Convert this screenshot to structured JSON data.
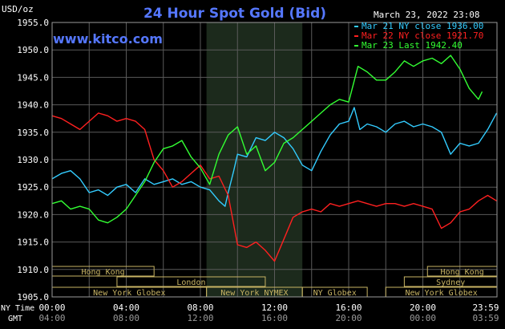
{
  "chart_data": {
    "type": "line",
    "title": "24 Hour Spot Gold (Bid)",
    "ylabel": "USD/oz",
    "watermark": "www.kitco.com",
    "timestamp": "March 23, 2022 23:08",
    "ylim": [
      1905.0,
      1955.0
    ],
    "yticks": [
      "1955.0",
      "1950.0",
      "1945.0",
      "1940.0",
      "1935.0",
      "1930.0",
      "1925.0",
      "1920.0",
      "1915.0",
      "1910.0",
      "1905.0"
    ],
    "xlim": [
      0,
      24
    ],
    "xtick_hours": [
      0,
      4,
      8,
      12,
      16,
      20,
      23.983
    ],
    "x_row_labels": {
      "ny": "NY Time",
      "gmt": "GMT"
    },
    "xticks_ny": [
      "00:00",
      "04:00",
      "08:00",
      "12:00",
      "16:00",
      "20:00",
      "23:59"
    ],
    "xticks_gmt": [
      "04:00",
      "08:00",
      "12:00",
      "16:00",
      "20:00",
      "00:00",
      "03:59"
    ],
    "nymex_shade": [
      8.33,
      13.5
    ],
    "sessions": [
      {
        "label": "Hong Kong",
        "start": 0.0,
        "end": 5.5,
        "row": 0
      },
      {
        "label": "Hong Kong",
        "start": 20.25,
        "end": 24.0,
        "row": 0
      },
      {
        "label": "London",
        "start": 3.5,
        "end": 11.5,
        "row": 1
      },
      {
        "label": "Sydney",
        "start": 19.0,
        "end": 24.0,
        "row": 1
      },
      {
        "label": "New York Globex",
        "start": 0.0,
        "end": 8.33,
        "row": 2
      },
      {
        "label": "New York NYMEX",
        "start": 8.33,
        "end": 13.5,
        "row": 2
      },
      {
        "label": "NY Globex",
        "start": 13.5,
        "end": 17.0,
        "row": 2
      },
      {
        "label": "New York Globex",
        "start": 18.0,
        "end": 24.0,
        "row": 2
      }
    ],
    "series": [
      {
        "name": "Mar 21 NY close 1936.00",
        "color": "#33ccff",
        "x": [
          0,
          0.5,
          1.0,
          1.5,
          2.0,
          2.5,
          3.0,
          3.5,
          4.0,
          4.5,
          5.0,
          5.5,
          6.0,
          6.5,
          7.0,
          7.5,
          8.0,
          8.5,
          9.0,
          9.33,
          9.5,
          9.8,
          10.0,
          10.5,
          11.0,
          11.5,
          12.0,
          12.5,
          13.0,
          13.5,
          14.0,
          14.5,
          15.0,
          15.5,
          16.0,
          16.3,
          16.6,
          17.0,
          17.5,
          18.0,
          18.5,
          19.0,
          19.5,
          20.0,
          20.5,
          21.0,
          21.5,
          22.0,
          22.5,
          23.0,
          23.5,
          23.98
        ],
        "values": [
          1926.5,
          1927.5,
          1928.0,
          1926.5,
          1924.0,
          1924.5,
          1923.5,
          1925.0,
          1925.5,
          1924.0,
          1926.5,
          1925.5,
          1926.0,
          1926.5,
          1925.5,
          1926.0,
          1925.0,
          1924.5,
          1922.5,
          1921.5,
          1924.0,
          1928.0,
          1931.0,
          1930.5,
          1934.0,
          1933.5,
          1935.0,
          1934.0,
          1932.0,
          1929.0,
          1928.0,
          1931.5,
          1934.5,
          1936.5,
          1937.0,
          1939.5,
          1935.5,
          1936.5,
          1936.0,
          1935.0,
          1936.5,
          1937.0,
          1936.0,
          1936.5,
          1936.0,
          1935.0,
          1931.0,
          1933.0,
          1932.5,
          1933.0,
          1935.5,
          1938.5
        ]
      },
      {
        "name": "Mar 22 NY close 1921.70",
        "color": "#ff2020",
        "x": [
          0,
          0.5,
          1.0,
          1.5,
          2.0,
          2.5,
          3.0,
          3.5,
          4.0,
          4.5,
          5.0,
          5.5,
          6.0,
          6.5,
          7.0,
          7.5,
          8.0,
          8.5,
          9.0,
          9.5,
          10.0,
          10.5,
          11.0,
          11.5,
          12.0,
          12.5,
          13.0,
          13.5,
          14.0,
          14.5,
          15.0,
          15.5,
          16.0,
          16.5,
          17.0,
          17.5,
          18.0,
          18.5,
          19.0,
          19.5,
          20.0,
          20.5,
          21.0,
          21.5,
          22.0,
          22.5,
          23.0,
          23.5,
          23.98
        ],
        "values": [
          1938.0,
          1937.5,
          1936.5,
          1935.5,
          1937.0,
          1938.5,
          1938.0,
          1937.0,
          1937.5,
          1937.0,
          1935.5,
          1930.0,
          1928.0,
          1925.0,
          1926.0,
          1927.5,
          1929.0,
          1926.5,
          1927.0,
          1923.5,
          1914.5,
          1914.0,
          1915.0,
          1913.5,
          1911.5,
          1915.5,
          1919.5,
          1920.5,
          1921.0,
          1920.5,
          1922.0,
          1921.5,
          1922.0,
          1922.5,
          1922.0,
          1921.5,
          1922.0,
          1922.0,
          1921.5,
          1922.0,
          1921.5,
          1921.0,
          1917.5,
          1918.5,
          1920.5,
          1921.0,
          1922.5,
          1923.5,
          1922.5
        ]
      },
      {
        "name": "Mar 23 Last 1942.40",
        "color": "#33ff33",
        "x": [
          0,
          0.5,
          1.0,
          1.5,
          2.0,
          2.5,
          3.0,
          3.5,
          4.0,
          4.5,
          5.0,
          5.5,
          6.0,
          6.5,
          7.0,
          7.5,
          8.0,
          8.5,
          9.0,
          9.5,
          10.0,
          10.5,
          11.0,
          11.5,
          12.0,
          12.5,
          13.0,
          13.5,
          14.0,
          14.5,
          15.0,
          15.5,
          16.0,
          16.5,
          17.0,
          17.5,
          18.0,
          18.5,
          19.0,
          19.5,
          20.0,
          20.5,
          21.0,
          21.5,
          22.0,
          22.5,
          23.0,
          23.2
        ],
        "values": [
          1922.0,
          1922.5,
          1921.0,
          1921.5,
          1921.0,
          1919.0,
          1918.5,
          1919.5,
          1921.0,
          1923.5,
          1926.0,
          1929.5,
          1932.0,
          1932.5,
          1933.5,
          1930.5,
          1928.5,
          1925.5,
          1931.0,
          1934.5,
          1936.0,
          1931.0,
          1932.5,
          1928.0,
          1929.5,
          1933.0,
          1934.0,
          1935.5,
          1937.0,
          1938.5,
          1940.0,
          1941.0,
          1940.5,
          1947.0,
          1946.0,
          1944.5,
          1944.5,
          1946.0,
          1948.0,
          1947.0,
          1948.0,
          1948.5,
          1947.5,
          1949.0,
          1946.5,
          1943.0,
          1941.0,
          1942.4
        ]
      }
    ]
  }
}
